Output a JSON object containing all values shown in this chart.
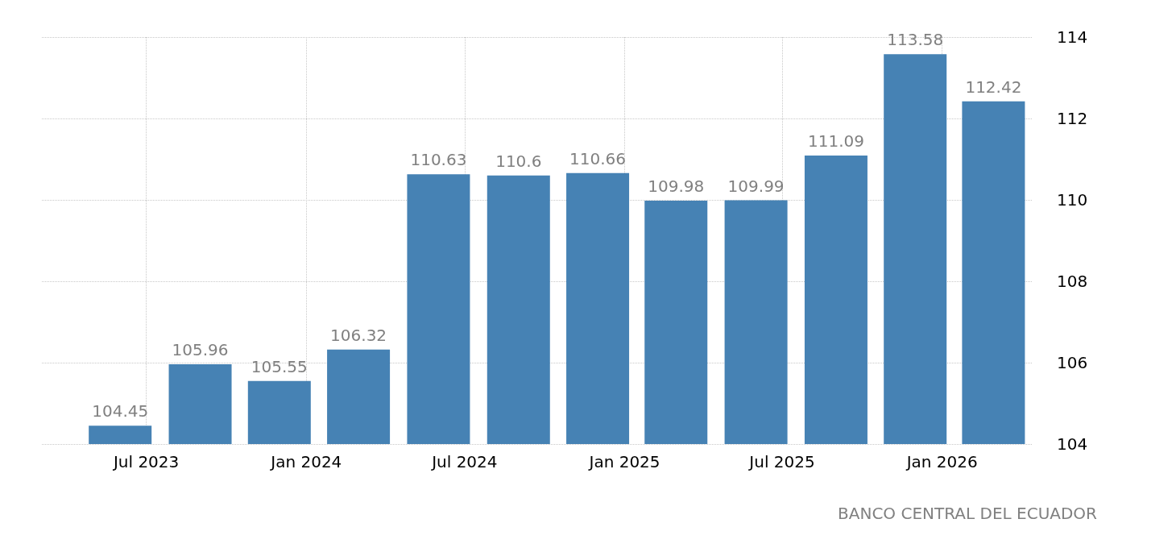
{
  "chart_data": {
    "type": "bar",
    "x": [
      "2023-06",
      "2023-09",
      "2023-12",
      "2024-03",
      "2024-06",
      "2024-09",
      "2024-12",
      "2025-03",
      "2025-06",
      "2025-09",
      "2025-12",
      "2026-03"
    ],
    "values": [
      104.45,
      105.96,
      105.55,
      106.32,
      110.63,
      110.6,
      110.66,
      109.98,
      109.99,
      111.09,
      113.58,
      112.42
    ],
    "color": "#4682b4",
    "data_labels": true,
    "xlim": [
      "2023-03-03",
      "2026-04-15"
    ],
    "xticks": [
      {
        "value": "2023-07",
        "label": "Jul 2023"
      },
      {
        "value": "2024-01",
        "label": "Jan 2024"
      },
      {
        "value": "2024-07",
        "label": "Jul 2024"
      },
      {
        "value": "2025-01",
        "label": "Jan 2025"
      },
      {
        "value": "2025-07",
        "label": "Jul 2025"
      },
      {
        "value": "2026-01",
        "label": "Jan 2026"
      }
    ],
    "ylim": [
      104,
      114
    ],
    "yticks": [
      104,
      106,
      108,
      110,
      112,
      114
    ],
    "grid": true,
    "annotations": [
      "BANCO CENTRAL DEL ECUADOR"
    ]
  }
}
